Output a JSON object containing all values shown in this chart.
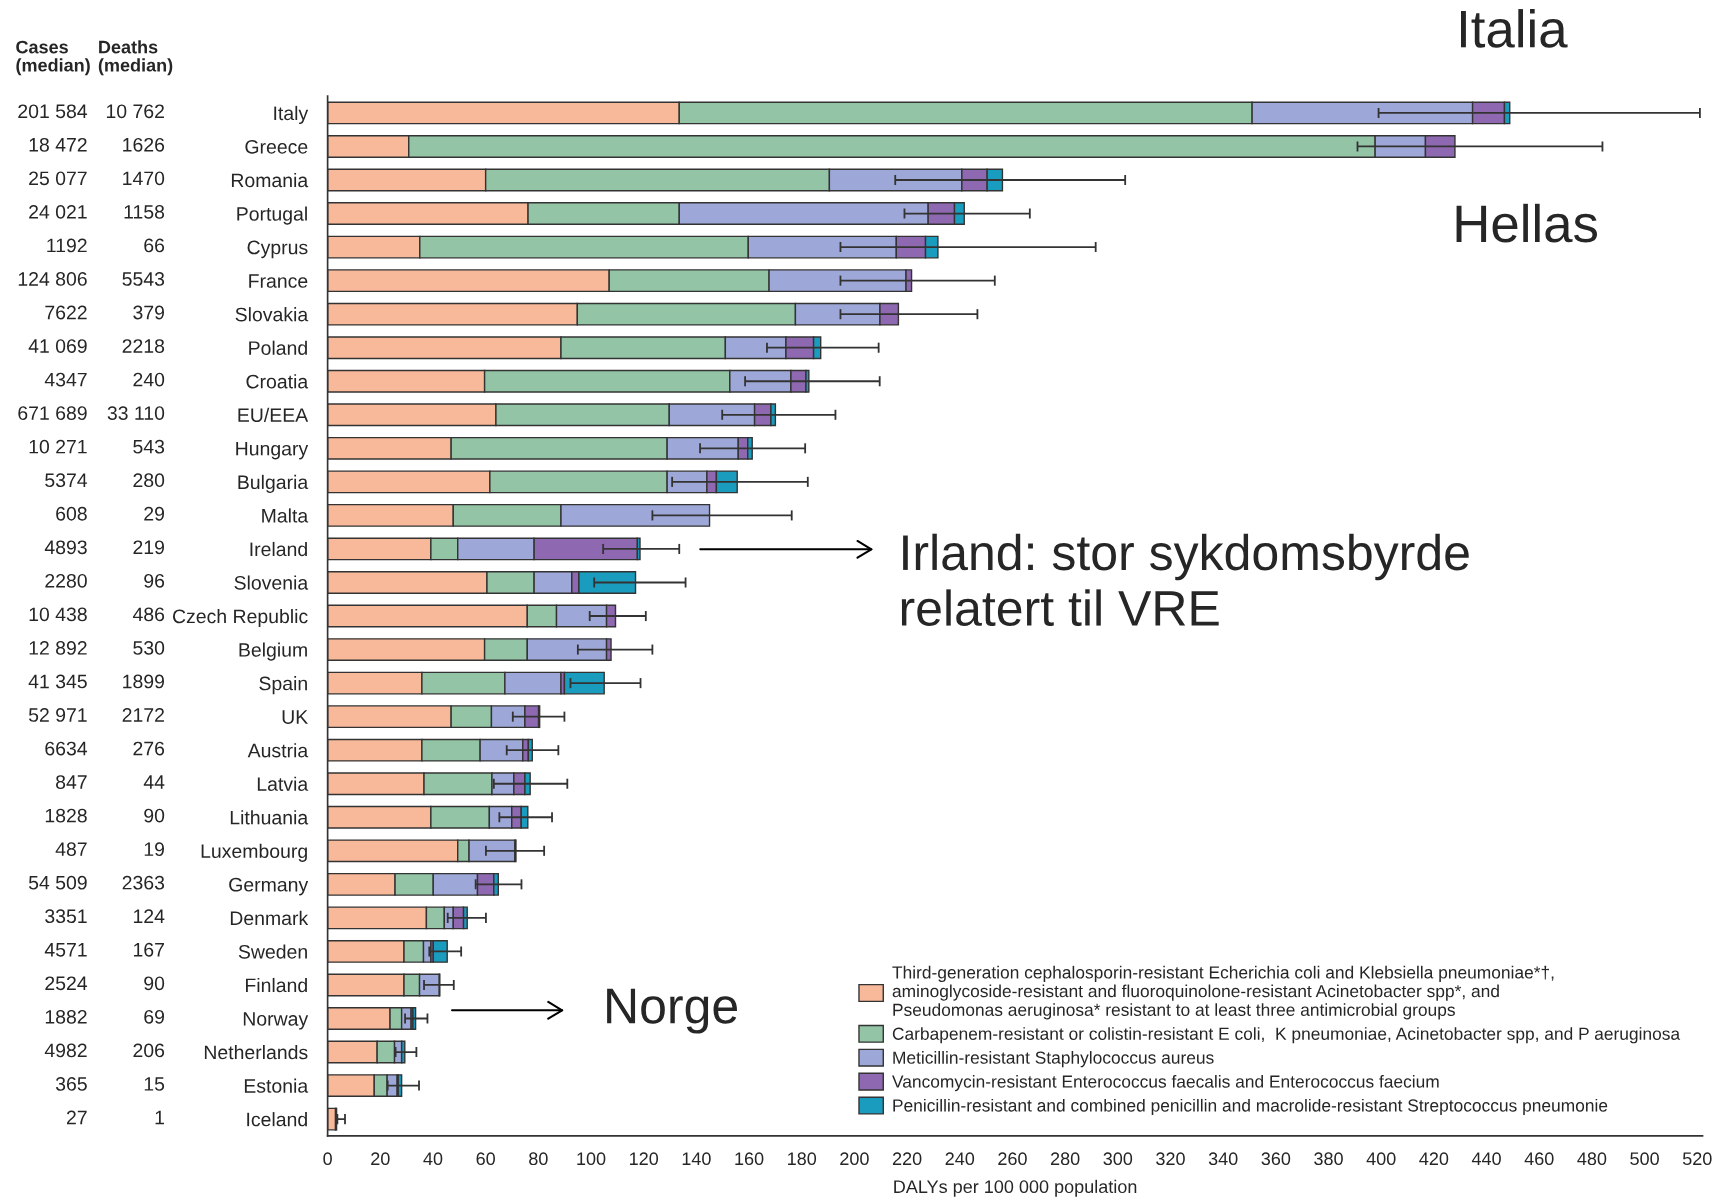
{
  "chart_data": {
    "type": "bar",
    "orientation": "horizontal",
    "stacked": true,
    "xlabel": "DALYs per 100 000 population",
    "categories": [
      "Italy",
      "Greece",
      "Romania",
      "Portugal",
      "Cyprus",
      "France",
      "Slovakia",
      "Poland",
      "Croatia",
      "EU/EEA",
      "Hungary",
      "Bulgaria",
      "Malta",
      "Ireland",
      "Slovenia",
      "Czech Republic",
      "Belgium",
      "Spain",
      "UK",
      "Austria",
      "Latvia",
      "Lithuania",
      "Luxembourg",
      "Germany",
      "Denmark",
      "Sweden",
      "Finland",
      "Norway",
      "Netherlands",
      "Estonia",
      "Iceland"
    ],
    "xlim": [
      0,
      522
    ],
    "xticks": [
      0,
      20,
      40,
      60,
      80,
      100,
      120,
      140,
      160,
      180,
      200,
      220,
      240,
      260,
      280,
      300,
      320,
      340,
      360,
      380,
      400,
      420,
      440,
      460,
      480,
      500,
      520
    ],
    "grid": false,
    "legend": "bottom right",
    "series": [
      {
        "name": "Third-generation cephalosporin-resistant Echerichia coli and Klebsiella pneumoniae*†,\naminoglycoside-resistant and fluoroquinolone-resistant Acinetobacter spp*, and\nPseudomonas aeruginosa* resistant to at least three antimicrobial groups",
        "color": "#f8b89a",
        "values": [
          133.5,
          30.8,
          60,
          76.1,
          35,
          106.9,
          94.8,
          88.6,
          59.6,
          63.9,
          46.9,
          61.6,
          47.7,
          39.2,
          60.5,
          75.8,
          59.6,
          35.8,
          46.9,
          35.8,
          36.6,
          39.2,
          49.4,
          25.6,
          37.5,
          29,
          29,
          23.7,
          18.8,
          17.7,
          3
        ]
      },
      {
        "name": "Carbapenem-resistant or colistin-resistant E coli,  K pneumoniae, Acinetobacter spp, and P aeruginosa",
        "color": "#93c4a6",
        "values": [
          217.5,
          366.9,
          130.5,
          57.4,
          124.7,
          60.7,
          82.8,
          62.4,
          93.1,
          65.8,
          82,
          67.3,
          40.9,
          10.2,
          17.9,
          11.1,
          16.2,
          31.5,
          15.3,
          22.1,
          25.8,
          22.2,
          4.3,
          14.5,
          6.8,
          7.4,
          5.9,
          4.4,
          6.6,
          4.9,
          null
        ]
      },
      {
        "name": "Meticillin-resistant Staphylococcus aureus",
        "color": "#9ea8d8",
        "values": [
          83.7,
          19.1,
          50.3,
          94.5,
          56.2,
          52,
          32.1,
          23,
          23.2,
          32.4,
          27,
          15.1,
          56.4,
          29,
          14.3,
          19,
          30.1,
          21.3,
          12.7,
          16.2,
          8.3,
          8.5,
          17.4,
          16.8,
          3.4,
          2.8,
          7.5,
          3.6,
          2.7,
          3.8,
          null
        ]
      },
      {
        "name": "Vancomycin-resistant Enterococcus faecalis and Enterococcus faecium",
        "color": "#8e68b0",
        "values": [
          12.1,
          11.2,
          9.6,
          10,
          11.1,
          2.1,
          7,
          10.5,
          5.7,
          6.2,
          3.6,
          3.6,
          0,
          39.2,
          2.7,
          3.4,
          1.7,
          1.3,
          5.2,
          2.1,
          4.2,
          3.6,
          0.4,
          6.2,
          3.9,
          0.9,
          0.2,
          0.7,
          null,
          0.4,
          0.2
        ]
      },
      {
        "name": "Penicillin-resistant and combined penicillin and macrolide-resistant Streptococcus pneumonie",
        "color": "#1a9cbf",
        "values": [
          2,
          0,
          5.8,
          3.7,
          4.7,
          0,
          0,
          2.7,
          1.1,
          1.7,
          1.7,
          7.9,
          0,
          1,
          21.5,
          0,
          0,
          15.1,
          0.4,
          1.5,
          2,
          2.5,
          0,
          1.7,
          1.4,
          5.3,
          0,
          1,
          1.2,
          1.3,
          0.2
        ],
        "errors": [
          [
            399,
            521
          ],
          [
            391,
            484
          ],
          [
            215.5,
            302.8
          ],
          [
            219,
            266.6
          ],
          [
            194.7,
            291.6
          ],
          [
            194.7,
            253.3
          ],
          [
            194.7,
            246.7
          ],
          [
            166.8,
            209.2
          ],
          [
            158.5,
            209.6
          ],
          [
            149.8,
            192.8
          ],
          [
            141.4,
            181.3
          ],
          [
            130.8,
            182.3
          ],
          [
            123.3,
            176.2
          ],
          [
            104.6,
            133.5
          ],
          [
            101.2,
            135.9
          ],
          [
            99.5,
            120.8
          ],
          [
            95,
            123.3
          ],
          [
            92.2,
            118.8
          ],
          [
            70.3,
            89.9
          ],
          [
            68,
            87.6
          ],
          [
            63.1,
            91
          ],
          [
            65.2,
            85.2
          ],
          [
            60.1,
            82.2
          ],
          [
            56.2,
            73.6
          ],
          [
            45.6,
            60.1
          ],
          [
            38.6,
            50.7
          ],
          [
            36.6,
            47.9
          ],
          [
            29.4,
            37.9
          ],
          [
            25.8,
            33.7
          ],
          [
            22.8,
            34.7
          ],
          [
            3.7,
            6.6
          ]
        ]
      }
    ],
    "annotations": [
      "Cases\n(median)",
      "Deaths\n(median)",
      "Italia",
      "Hellas",
      "Irland: stor sykdomsbyrde\nrelatert til VRE",
      "Norge",
      "201 584",
      "10 762",
      "18 472",
      "1626",
      "25 077",
      "1470",
      "24 021",
      "1158",
      "1192",
      "66",
      "124 806",
      "5543",
      "7622",
      "379",
      "41 069",
      "2218",
      "4347",
      "240",
      "671 689",
      "33 110",
      "10 271",
      "543",
      "5374",
      "280",
      "608",
      "29",
      "4893",
      "219",
      "2280",
      "96",
      "10 438",
      "486",
      "12 892",
      "530",
      "41 345",
      "1899",
      "52 971",
      "2172",
      "6634",
      "276",
      "847",
      "44",
      "1828",
      "90",
      "487",
      "19",
      "54 509",
      "2363",
      "3351",
      "124",
      "4571",
      "167",
      "2524",
      "90",
      "1882",
      "69",
      "4982",
      "206",
      "365",
      "15",
      "27",
      "1"
    ]
  }
}
